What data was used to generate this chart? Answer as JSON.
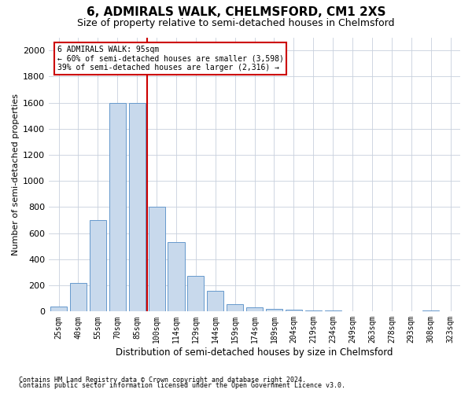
{
  "title1": "6, ADMIRALS WALK, CHELMSFORD, CM1 2XS",
  "title2": "Size of property relative to semi-detached houses in Chelmsford",
  "xlabel": "Distribution of semi-detached houses by size in Chelmsford",
  "ylabel": "Number of semi-detached properties",
  "categories": [
    "25sqm",
    "40sqm",
    "55sqm",
    "70sqm",
    "85sqm",
    "100sqm",
    "114sqm",
    "129sqm",
    "144sqm",
    "159sqm",
    "174sqm",
    "189sqm",
    "204sqm",
    "219sqm",
    "234sqm",
    "249sqm",
    "263sqm",
    "278sqm",
    "293sqm",
    "308sqm",
    "323sqm"
  ],
  "values": [
    40,
    220,
    700,
    1600,
    1595,
    800,
    530,
    270,
    160,
    55,
    30,
    20,
    15,
    10,
    8,
    2,
    0,
    0,
    0,
    10,
    0
  ],
  "bar_color": "#c8d9ec",
  "bar_edge_color": "#6699cc",
  "marker_value_idx": 5,
  "marker_color": "#cc0000",
  "ylim": [
    0,
    2100
  ],
  "yticks": [
    0,
    200,
    400,
    600,
    800,
    1000,
    1200,
    1400,
    1600,
    1800,
    2000
  ],
  "annotation_title": "6 ADMIRALS WALK: 95sqm",
  "annotation_line1": "← 60% of semi-detached houses are smaller (3,598)",
  "annotation_line2": "39% of semi-detached houses are larger (2,316) →",
  "annotation_box_color": "#ffffff",
  "annotation_box_edge": "#cc0000",
  "footnote1": "Contains HM Land Registry data © Crown copyright and database right 2024.",
  "footnote2": "Contains public sector information licensed under the Open Government Licence v3.0.",
  "bg_color": "#ffffff",
  "grid_color": "#c8d0dd",
  "title1_fontsize": 11,
  "title2_fontsize": 9,
  "bin_width": 1
}
